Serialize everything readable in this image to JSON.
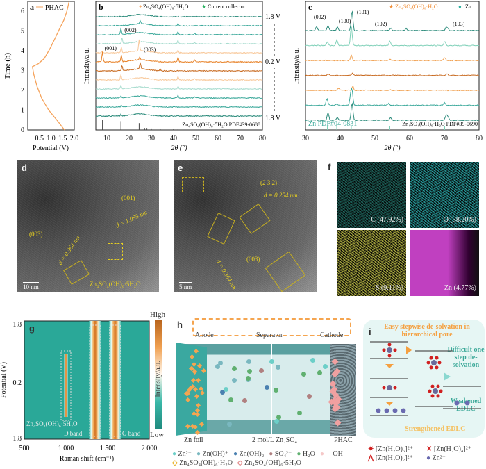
{
  "panels": {
    "a": "a",
    "b": "b",
    "c": "c",
    "d": "d",
    "e": "e",
    "f": "f",
    "g": "g",
    "h": "h",
    "i": "i"
  },
  "chart_data": [
    {
      "panel": "a",
      "type": "line",
      "xlabel": "Potential (V)",
      "ylabel": "Time (h)",
      "xlim": [
        0,
        2
      ],
      "ylim": [
        0,
        6.5
      ],
      "xticks": [
        "0.5",
        "1.0",
        "1.5",
        "2.0"
      ],
      "yticks": [
        "0",
        "1",
        "2",
        "3",
        "4",
        "5",
        "6"
      ],
      "series": [
        {
          "name": "PHAC",
          "color": "#f5a25a",
          "points": [
            [
              1.58,
              0
            ],
            [
              1.25,
              0.5
            ],
            [
              0.9,
              1
            ],
            [
              0.6,
              1.6
            ],
            [
              0.4,
              2.2
            ],
            [
              0.26,
              2.8
            ],
            [
              0.2,
              3.2
            ],
            [
              0.45,
              3.35
            ],
            [
              0.7,
              3.6
            ],
            [
              0.95,
              4.1
            ],
            [
              1.2,
              4.7
            ],
            [
              1.4,
              5.2
            ],
            [
              1.55,
              5.55
            ],
            [
              1.68,
              6.0
            ],
            [
              1.78,
              6.5
            ]
          ]
        }
      ]
    },
    {
      "panel": "b",
      "type": "line",
      "xlabel": "2θ (°)",
      "ylabel": "Intensity/a.u.",
      "xlim": [
        5,
        80
      ],
      "xticks": [
        "10",
        "20",
        "30",
        "40",
        "50",
        "60",
        "70",
        "80"
      ],
      "legend": [
        {
          "label": "Zn₄SO₄(OH)₆·5H₂O",
          "marker": "+",
          "color": "#f08a30"
        },
        {
          "label": "Current collector",
          "marker": "★",
          "color": "#2ab060"
        }
      ],
      "potential_labels": [
        "1.8 V",
        "0.2 V",
        "1.8 V"
      ],
      "reference": "Zn₄SO₄(OH)₆·5H₂O PDF#39-0688",
      "annotations": [
        "(001)",
        "(002)",
        "(003)"
      ],
      "traces": [
        {
          "color": "#2a8a7a",
          "peaks": []
        },
        {
          "color": "#3aa89a",
          "peaks": [
            [
              25,
              4
            ],
            [
              42,
              3
            ]
          ]
        },
        {
          "color": "#3aa89a",
          "peaks": [
            [
              16.3,
              9
            ],
            [
              42,
              4
            ],
            [
              49.5,
              2
            ]
          ]
        },
        {
          "color": "#a8dccf",
          "peaks": [
            [
              16.8,
              8
            ],
            [
              42,
              5
            ],
            [
              49.5,
              2
            ]
          ]
        },
        {
          "color": "#f8c89a",
          "peaks": [
            [
              8,
              3
            ],
            [
              16.5,
              8
            ],
            [
              24.5,
              16
            ],
            [
              42,
              4
            ]
          ]
        },
        {
          "color": "#e8832a",
          "peaks": [
            [
              8,
              14
            ],
            [
              16.5,
              9
            ],
            [
              24.8,
              4
            ],
            [
              42,
              7
            ],
            [
              49.5,
              3
            ]
          ]
        },
        {
          "color": "#c86a20",
          "peaks": [
            [
              16.8,
              7
            ],
            [
              25,
              9
            ],
            [
              34,
              2
            ]
          ]
        },
        {
          "color": "#f8c89a",
          "peaks": [
            [
              16.3,
              7
            ],
            [
              42,
              5
            ],
            [
              49.5,
              2
            ]
          ]
        },
        {
          "color": "#a8dccf",
          "peaks": [
            [
              16.3,
              4
            ],
            [
              42,
              4
            ]
          ]
        },
        {
          "color": "#3aa89a",
          "peaks": [
            [
              16.3,
              3
            ],
            [
              42,
              4
            ],
            [
              49.5,
              2
            ]
          ]
        },
        {
          "color": "#3aa89a",
          "peaks": [
            [
              16.5,
              3
            ]
          ]
        },
        {
          "color": "#2a8a7a",
          "peaks": [
            [
              16.3,
              2
            ],
            [
              42,
              1
            ]
          ]
        }
      ],
      "ref_lines": [
        [
          8,
          1
        ],
        [
          16.3,
          0.9
        ],
        [
          24.5,
          0.7
        ],
        [
          27,
          0.2
        ],
        [
          28,
          0.2
        ],
        [
          30,
          0.15
        ],
        [
          34,
          0.1
        ],
        [
          40,
          0.1
        ],
        [
          42,
          0.1
        ]
      ]
    },
    {
      "panel": "c",
      "type": "line",
      "xlabel": "2θ (°)",
      "ylabel": "Intensity/a.u.",
      "xlim": [
        30,
        80
      ],
      "xticks": [
        "30",
        "40",
        "50",
        "60",
        "70",
        "80"
      ],
      "legend": [
        {
          "label": "Zn₄SO₄(OH)₆·H₂O",
          "marker": "★",
          "color": "#f08a30"
        },
        {
          "label": "Zn",
          "marker": "●",
          "color": "#2ab0a0"
        }
      ],
      "annotations": [
        "(002)",
        "(100)",
        "(101)",
        "(102)",
        "(103)"
      ],
      "references": [
        "Zn PDF#04-0831",
        "Zn₄SO₄(OH)₆·H₂O PDF#39-0690"
      ],
      "traces": [
        {
          "color": "#2a8a7a",
          "peaks": [
            [
              33.2,
              6
            ],
            [
              36.5,
              7
            ],
            [
              39.2,
              5
            ],
            [
              43.4,
              30
            ],
            [
              54.6,
              4
            ],
            [
              59,
              3
            ],
            [
              70.5,
              5
            ],
            [
              71,
              3
            ]
          ]
        },
        {
          "color": "#7fd0b8",
          "peaks": [
            [
              36.3,
              5
            ],
            [
              39,
              8
            ],
            [
              43.2,
              28
            ],
            [
              54.3,
              7
            ],
            [
              70.1,
              6
            ]
          ]
        },
        {
          "color": "#f0a050",
          "peaks": [
            [
              43.2,
              7
            ],
            [
              54.3,
              2
            ],
            [
              70.1,
              4
            ]
          ]
        },
        {
          "color": "#c86a20",
          "peaks": [
            [
              36.5,
              2
            ],
            [
              43.5,
              3
            ],
            [
              70.8,
              2
            ]
          ]
        },
        {
          "color": "#f0a050",
          "peaks": [
            [
              39.5,
              3
            ],
            [
              43.6,
              6
            ],
            [
              54.5,
              1
            ]
          ]
        },
        {
          "color": "#3aa89a",
          "peaks": [
            [
              36.2,
              10
            ],
            [
              39,
              2
            ],
            [
              43,
              14
            ],
            [
              43.4,
              20
            ],
            [
              54,
              3
            ],
            [
              70,
              4
            ]
          ]
        },
        {
          "color": "#2a8a7a",
          "peaks": [
            [
              36.5,
              11
            ],
            [
              39.2,
              4
            ],
            [
              43.4,
              26
            ],
            [
              54.5,
              4
            ],
            [
              70.5,
              7
            ],
            [
              71,
              5
            ]
          ]
        }
      ]
    },
    {
      "panel": "g",
      "type": "heatmap",
      "xlabel": "Raman shift (cm⁻¹)",
      "ylabel": "Potential (V)",
      "xlim": [
        500,
        2000
      ],
      "xticks": [
        "500",
        "1 000",
        "1 500",
        "2 000"
      ],
      "yticks": [
        "1.8",
        "0.2",
        "1.8"
      ],
      "colorbar": [
        "High",
        "Low"
      ],
      "colorbar_label": "Intensity/a.u.",
      "annotations": [
        "Zn₄SO₄(OH)₆·5H₂O",
        "D band",
        "G band"
      ],
      "bands": [
        1000,
        1350,
        1590
      ]
    }
  ],
  "tem_d": {
    "labels": [
      "(001)",
      "d = 1.095 nm",
      "(003)",
      "d = 0.364 nm",
      "Zn₄SO₄(OH)₆·5H₂O"
    ],
    "scale": "10 nm"
  },
  "tem_e": {
    "labels": [
      "(2 3̄ 2)",
      "d = 0.254 nm",
      "(003)",
      "d = 0.364 nm"
    ],
    "scale": "5 nm"
  },
  "eds": [
    {
      "label": "C (47.92%)",
      "color": "#30b0a0"
    },
    {
      "label": "O (38.20%)",
      "color": "#30c8c8"
    },
    {
      "label": "S (9.11%)",
      "color": "#e0e050"
    },
    {
      "label": "Zn (4.77%)",
      "color": "#c040c0"
    }
  ],
  "h": {
    "anode": "Anode",
    "separator": "Separator",
    "cathode": "Cathode",
    "zn_foil": "Zn foil",
    "electrolyte": "2 mol/L Zn₂SO₄",
    "phac": "PHAC",
    "legend": [
      "Zn²⁺",
      "Zn(OH)⁺",
      "Zn(OH)₂",
      "SO₄²⁻",
      "H₂O",
      "—OH",
      "Zn₄SO₄(OH)₆·H₂O",
      "Zn₄SO₄(OH)₆·5H₂O"
    ]
  },
  "i": {
    "title": "Easy stepwise de-solvation in hierarchical pore",
    "difficult": "Difficult one step de-solvation",
    "weakened": "Weakened EDLC",
    "strengthened": "Strengthened EDLC",
    "legend": [
      "[Zn(H₂O)₆]²⁺",
      "[Zn(H₂O)₄]²⁺",
      "[Zn(H₂O)₂]²⁺",
      "Zn²⁺"
    ]
  }
}
